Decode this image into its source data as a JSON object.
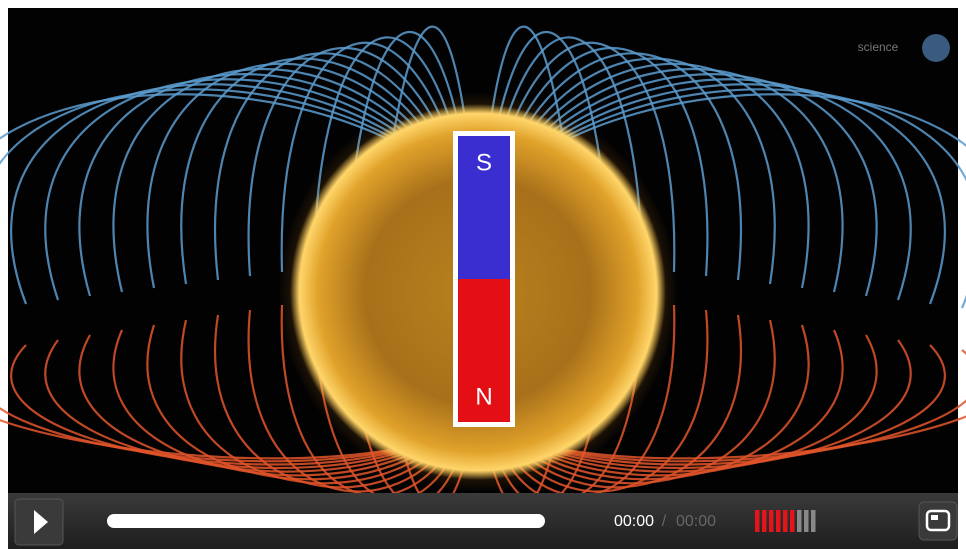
{
  "watermark": "science",
  "magnet": {
    "south": "S",
    "north": "N"
  },
  "controls": {
    "current_time": "00:00",
    "separator": "/",
    "duration": "00:00"
  }
}
